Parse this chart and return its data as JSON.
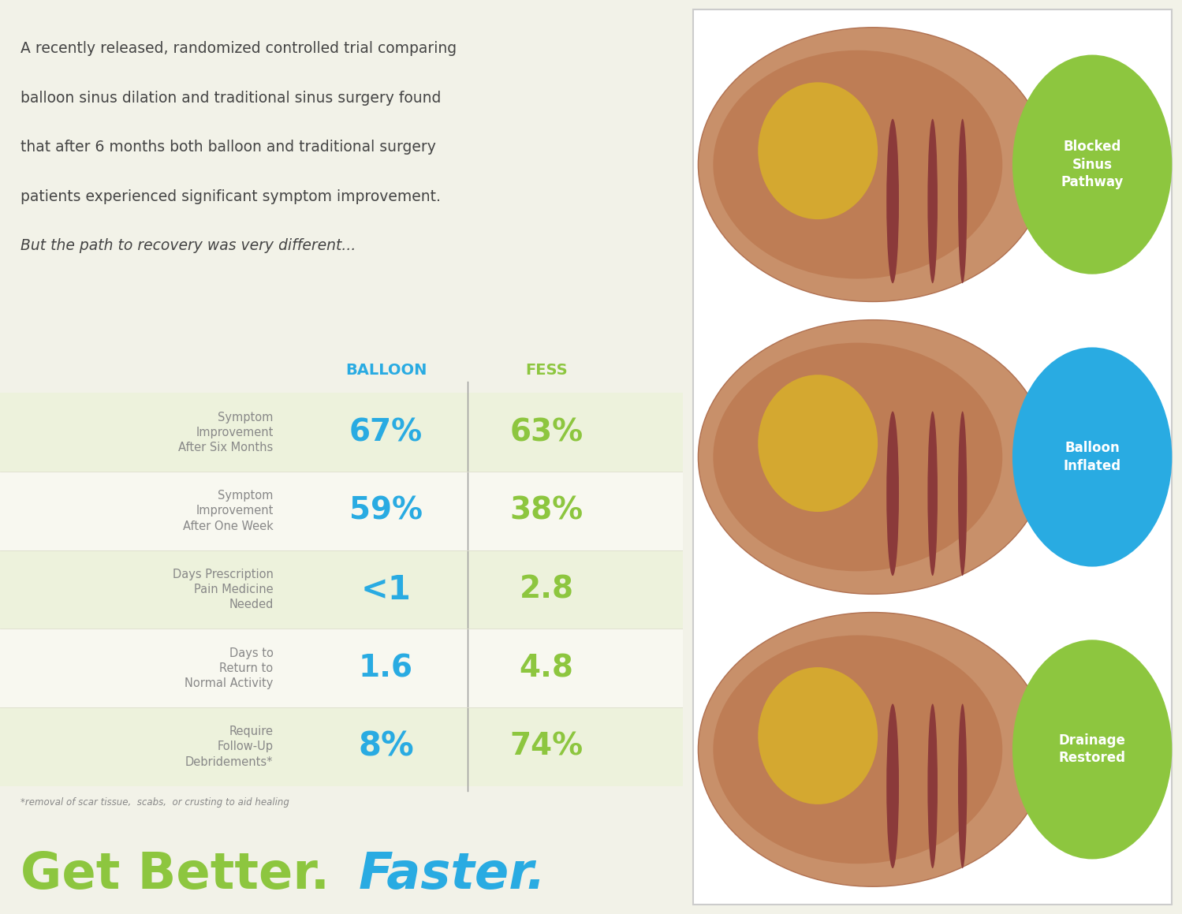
{
  "bg_color": "#f2f2e8",
  "title_text_lines": [
    "A recently released, randomized controlled trial comparing",
    "balloon sinus dilation and traditional sinus surgery found",
    "that after 6 months both balloon and traditional surgery",
    "patients experienced significant symptom improvement.",
    "But the path to recovery was very different..."
  ],
  "title_italic_line": 4,
  "col_header_balloon": "BALLOON",
  "col_header_fess": "FESS",
  "col_header_color_balloon": "#29abe2",
  "col_header_color_fess": "#8dc63f",
  "rows": [
    {
      "label_lines": [
        "Symptom",
        "Improvement",
        "After Six Months"
      ],
      "balloon_val": "67%",
      "fess_val": "63%",
      "balloon_color": "#29abe2",
      "fess_color": "#8dc63f",
      "row_bg": "#edf2dc"
    },
    {
      "label_lines": [
        "Symptom",
        "Improvement",
        "After One Week"
      ],
      "balloon_val": "59%",
      "fess_val": "38%",
      "balloon_color": "#29abe2",
      "fess_color": "#8dc63f",
      "row_bg": "#f8f8f0"
    },
    {
      "label_lines": [
        "Days Prescription",
        "Pain Medicine",
        "Needed"
      ],
      "balloon_val": "<1",
      "fess_val": "2.8",
      "balloon_color": "#29abe2",
      "fess_color": "#8dc63f",
      "row_bg": "#edf2dc"
    },
    {
      "label_lines": [
        "Days to",
        "Return to",
        "Normal Activity"
      ],
      "balloon_val": "1.6",
      "fess_val": "4.8",
      "balloon_color": "#29abe2",
      "fess_color": "#8dc63f",
      "row_bg": "#f8f8f0"
    },
    {
      "label_lines": [
        "Require",
        "Follow-Up",
        "Debridements*"
      ],
      "balloon_val": "8%",
      "fess_val": "74%",
      "balloon_color": "#29abe2",
      "fess_color": "#8dc63f",
      "row_bg": "#edf2dc"
    }
  ],
  "footnote": "*removal of scar tissue,  scabs,  or crusting to aid healing",
  "tagline_green": "Get Better.",
  "tagline_blue": "Faster.",
  "tagline_green_color": "#8dc63f",
  "tagline_blue_color": "#29abe2",
  "label_color": "#888888",
  "divider_color": "#999999",
  "circles": [
    {
      "label": "Blocked\nSinus\nPathway",
      "color": "#8dc63f"
    },
    {
      "label": "Balloon\nInflated",
      "color": "#29abe2"
    },
    {
      "label": "Drainage\nRestored",
      "color": "#8dc63f"
    }
  ],
  "right_panel_bg": "#ffffff",
  "border_color": "#cccccc"
}
